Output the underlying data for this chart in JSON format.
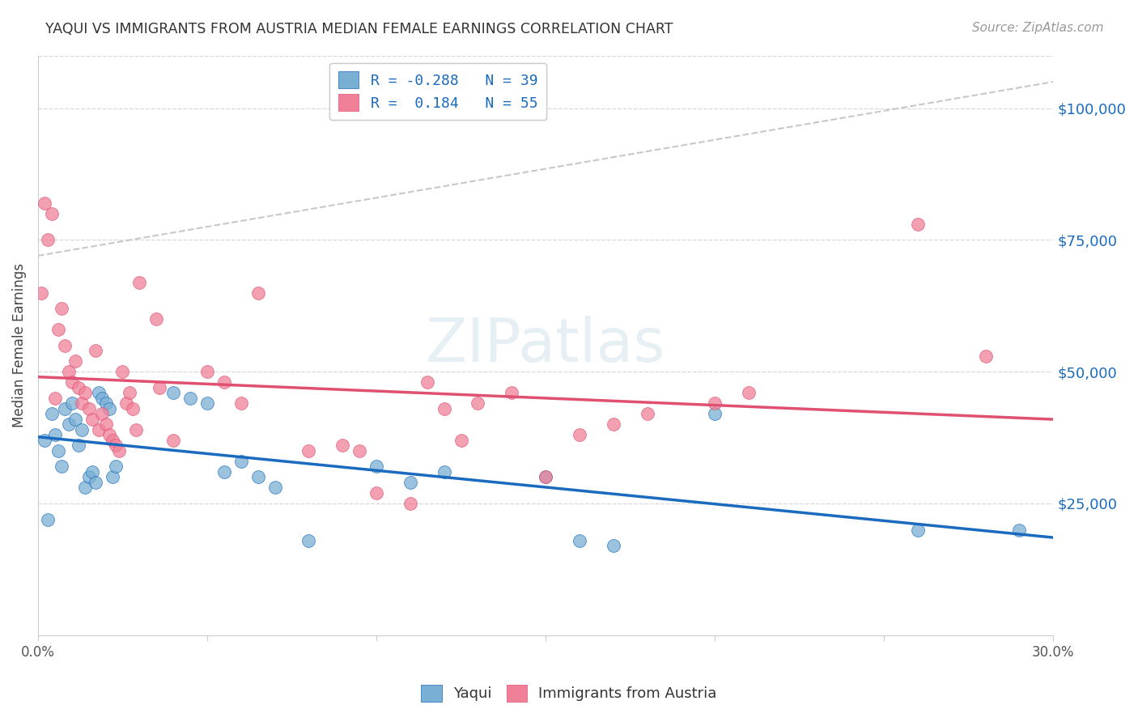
{
  "title": "YAQUI VS IMMIGRANTS FROM AUSTRIA MEDIAN FEMALE EARNINGS CORRELATION CHART",
  "source": "Source: ZipAtlas.com",
  "ylabel": "Median Female Earnings",
  "yaxis_labels": [
    "$25,000",
    "$50,000",
    "$75,000",
    "$100,000"
  ],
  "yaxis_values": [
    25000,
    50000,
    75000,
    100000
  ],
  "ylim": [
    0,
    110000
  ],
  "xlim": [
    0.0,
    0.3
  ],
  "legend_line1": "R = -0.288   N = 39",
  "legend_line2": "R =  0.184   N = 55",
  "legend_labels": [
    "Yaqui",
    "Immigrants from Austria"
  ],
  "blue_color": "#7aafd4",
  "pink_color": "#f08098",
  "blue_line_color": "#1a6bbf",
  "pink_line_color": "#e05070",
  "dashed_line_color": "#c8c8c8",
  "blue_points": [
    [
      0.002,
      37000
    ],
    [
      0.003,
      22000
    ],
    [
      0.004,
      42000
    ],
    [
      0.005,
      38000
    ],
    [
      0.006,
      35000
    ],
    [
      0.007,
      32000
    ],
    [
      0.008,
      43000
    ],
    [
      0.009,
      40000
    ],
    [
      0.01,
      44000
    ],
    [
      0.011,
      41000
    ],
    [
      0.012,
      36000
    ],
    [
      0.013,
      39000
    ],
    [
      0.014,
      28000
    ],
    [
      0.015,
      30000
    ],
    [
      0.016,
      31000
    ],
    [
      0.017,
      29000
    ],
    [
      0.018,
      46000
    ],
    [
      0.019,
      45000
    ],
    [
      0.02,
      44000
    ],
    [
      0.021,
      43000
    ],
    [
      0.022,
      30000
    ],
    [
      0.023,
      32000
    ],
    [
      0.04,
      46000
    ],
    [
      0.045,
      45000
    ],
    [
      0.05,
      44000
    ],
    [
      0.055,
      31000
    ],
    [
      0.06,
      33000
    ],
    [
      0.065,
      30000
    ],
    [
      0.07,
      28000
    ],
    [
      0.08,
      18000
    ],
    [
      0.1,
      32000
    ],
    [
      0.11,
      29000
    ],
    [
      0.12,
      31000
    ],
    [
      0.15,
      30000
    ],
    [
      0.16,
      18000
    ],
    [
      0.17,
      17000
    ],
    [
      0.2,
      42000
    ],
    [
      0.26,
      20000
    ],
    [
      0.29,
      20000
    ]
  ],
  "pink_points": [
    [
      0.001,
      65000
    ],
    [
      0.002,
      82000
    ],
    [
      0.003,
      75000
    ],
    [
      0.004,
      80000
    ],
    [
      0.005,
      45000
    ],
    [
      0.006,
      58000
    ],
    [
      0.007,
      62000
    ],
    [
      0.008,
      55000
    ],
    [
      0.009,
      50000
    ],
    [
      0.01,
      48000
    ],
    [
      0.011,
      52000
    ],
    [
      0.012,
      47000
    ],
    [
      0.013,
      44000
    ],
    [
      0.014,
      46000
    ],
    [
      0.015,
      43000
    ],
    [
      0.016,
      41000
    ],
    [
      0.017,
      54000
    ],
    [
      0.018,
      39000
    ],
    [
      0.019,
      42000
    ],
    [
      0.02,
      40000
    ],
    [
      0.021,
      38000
    ],
    [
      0.022,
      37000
    ],
    [
      0.023,
      36000
    ],
    [
      0.024,
      35000
    ],
    [
      0.025,
      50000
    ],
    [
      0.026,
      44000
    ],
    [
      0.027,
      46000
    ],
    [
      0.028,
      43000
    ],
    [
      0.029,
      39000
    ],
    [
      0.03,
      67000
    ],
    [
      0.035,
      60000
    ],
    [
      0.036,
      47000
    ],
    [
      0.04,
      37000
    ],
    [
      0.05,
      50000
    ],
    [
      0.055,
      48000
    ],
    [
      0.06,
      44000
    ],
    [
      0.065,
      65000
    ],
    [
      0.08,
      35000
    ],
    [
      0.09,
      36000
    ],
    [
      0.095,
      35000
    ],
    [
      0.1,
      27000
    ],
    [
      0.11,
      25000
    ],
    [
      0.115,
      48000
    ],
    [
      0.12,
      43000
    ],
    [
      0.125,
      37000
    ],
    [
      0.13,
      44000
    ],
    [
      0.14,
      46000
    ],
    [
      0.15,
      30000
    ],
    [
      0.16,
      38000
    ],
    [
      0.17,
      40000
    ],
    [
      0.18,
      42000
    ],
    [
      0.2,
      44000
    ],
    [
      0.21,
      46000
    ],
    [
      0.26,
      78000
    ],
    [
      0.28,
      53000
    ]
  ]
}
